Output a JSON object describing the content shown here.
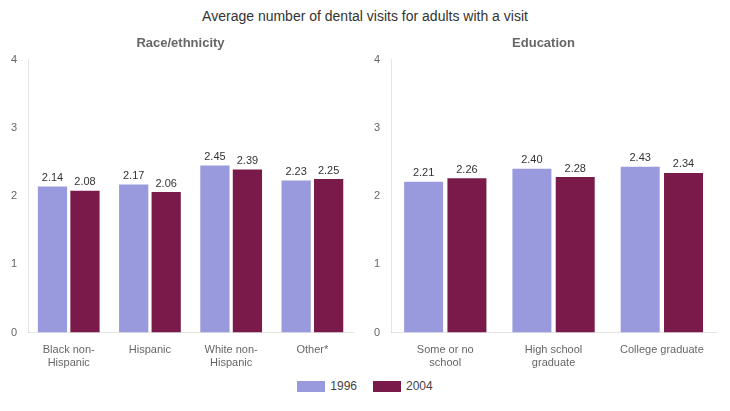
{
  "chart_data": [
    {
      "type": "bar",
      "title": "Average number of dental visits for adults with a visit",
      "subtitle": "Race/ethnicity",
      "categories": [
        "Black non-\nHispanic",
        "Hispanic",
        "White non-\nHispanic",
        "Other*"
      ],
      "series": [
        {
          "name": "1996",
          "color": "#9999dd",
          "values": [
            2.14,
            2.17,
            2.45,
            2.23
          ],
          "value_labels": [
            "2.14",
            "2.17",
            "2.45",
            "2.23"
          ]
        },
        {
          "name": "2004",
          "color": "#7a1a4a",
          "values": [
            2.08,
            2.06,
            2.39,
            2.25
          ],
          "value_labels": [
            "2.08",
            "2.06",
            "2.39",
            "2.25"
          ]
        }
      ],
      "ylim": [
        0,
        4
      ],
      "yticks": [
        0,
        1,
        2,
        3,
        4
      ],
      "data_labels": true,
      "grid": false,
      "legend": "bottom"
    },
    {
      "type": "bar",
      "subtitle": "Education",
      "categories": [
        "Some or no\nschool",
        "High school\ngraduate",
        "College graduate"
      ],
      "series": [
        {
          "name": "1996",
          "color": "#9999dd",
          "values": [
            2.21,
            2.4,
            2.43
          ],
          "value_labels": [
            "2.21",
            "2.40",
            "2.43"
          ]
        },
        {
          "name": "2004",
          "color": "#7a1a4a",
          "values": [
            2.26,
            2.28,
            2.34
          ],
          "value_labels": [
            "2.26",
            "2.28",
            "2.34"
          ]
        }
      ],
      "ylim": [
        0,
        4
      ],
      "yticks": [
        0,
        1,
        2,
        3,
        4
      ],
      "data_labels": true,
      "grid": false,
      "legend": "bottom"
    }
  ]
}
